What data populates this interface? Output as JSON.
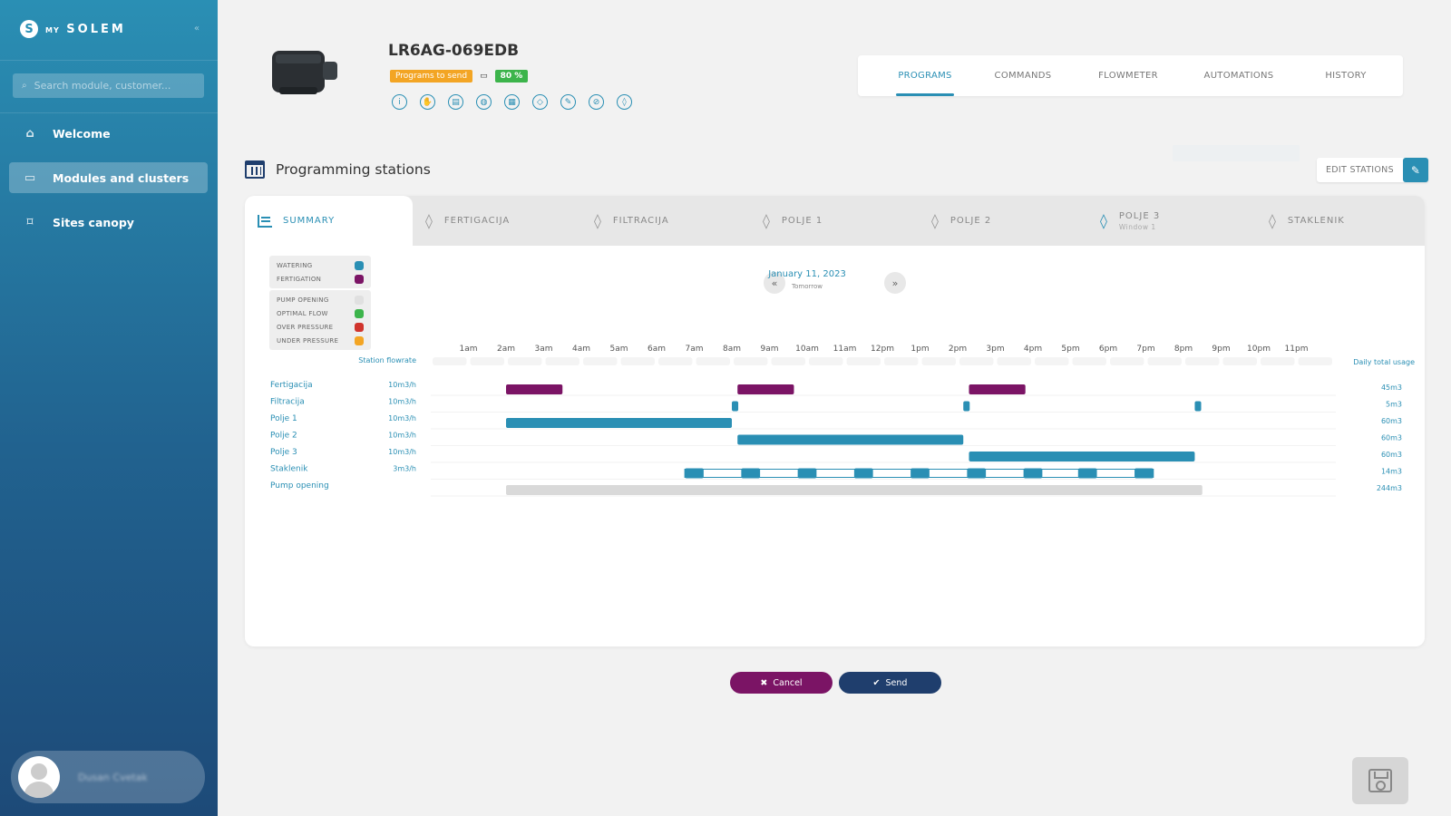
{
  "sidebar": {
    "logo_prefix": "MY",
    "logo_brand": "SOLEM",
    "collapse_icon": "«",
    "search_placeholder": "Search module, customer...",
    "items": [
      {
        "label": "Welcome",
        "icon": "home-icon",
        "active": false
      },
      {
        "label": "Modules and clusters",
        "icon": "modules-icon",
        "active": true
      },
      {
        "label": "Sites canopy",
        "icon": "map-icon",
        "active": false
      }
    ],
    "user_name": "Dusan Cvetak"
  },
  "device": {
    "title": "LR6AG-069EDB",
    "status_badge": "Programs to send",
    "battery": "80 %",
    "action_icons": [
      "info-icon",
      "hand-icon",
      "book-icon",
      "globe-icon",
      "calculator-icon",
      "tag-icon",
      "pencil-icon",
      "no-water-icon",
      "water-drop-icon"
    ]
  },
  "tabs": [
    {
      "label": "PROGRAMS",
      "active": true
    },
    {
      "label": "COMMANDS",
      "active": false
    },
    {
      "label": "FLOWMETER",
      "active": false
    },
    {
      "label": "AUTOMATIONS",
      "active": false
    },
    {
      "label": "HISTORY",
      "active": false
    }
  ],
  "section": {
    "title": "Programming stations",
    "edit_stations": "EDIT STATIONS"
  },
  "station_tabs": [
    {
      "label": "SUMMARY",
      "sub": "",
      "active": true
    },
    {
      "label": "FERTIGACIJA",
      "sub": ""
    },
    {
      "label": "FILTRACIJA",
      "sub": ""
    },
    {
      "label": "POLJE 1",
      "sub": ""
    },
    {
      "label": "POLJE 2",
      "sub": ""
    },
    {
      "label": "POLJE 3",
      "sub": "Window 1"
    },
    {
      "label": "STAKLENIK",
      "sub": ""
    }
  ],
  "legend": {
    "group1": [
      {
        "label": "WATERING",
        "color": "#2a8fb4"
      },
      {
        "label": "FERTIGATION",
        "color": "#7b1465"
      }
    ],
    "group2": [
      {
        "label": "PUMP OPENING",
        "color": "#e0e0e0"
      },
      {
        "label": "OPTIMAL FLOW",
        "color": "#3cb44b"
      },
      {
        "label": "OVER PRESSURE",
        "color": "#d0342c"
      },
      {
        "label": "UNDER PRESSURE",
        "color": "#f3a524"
      }
    ]
  },
  "date": {
    "label": "January 11, 2023",
    "sub": "Tomorrow",
    "prev": "«",
    "next": "»"
  },
  "chart_data": {
    "type": "gantt",
    "hours": [
      "1am",
      "2am",
      "3am",
      "4am",
      "5am",
      "6am",
      "7am",
      "8am",
      "9am",
      "10am",
      "11am",
      "12pm",
      "1pm",
      "2pm",
      "3pm",
      "4pm",
      "5pm",
      "6pm",
      "7pm",
      "8pm",
      "9pm",
      "10pm",
      "11pm"
    ],
    "flowrate_header": "Station flowrate",
    "usage_header": "Daily total usage",
    "rows": [
      {
        "name": "Fertigacija",
        "flowrate": "10m3/h",
        "usage": "45m3",
        "kind": "fertigation",
        "segments": [
          [
            2.0,
            3.5
          ],
          [
            8.15,
            9.65
          ],
          [
            14.3,
            15.8
          ]
        ]
      },
      {
        "name": "Filtracija",
        "flowrate": "10m3/h",
        "usage": "5m3",
        "kind": "watering",
        "segments": [
          [
            8.0,
            8.17
          ],
          [
            14.15,
            14.32
          ],
          [
            20.3,
            20.47
          ]
        ]
      },
      {
        "name": "Polje 1",
        "flowrate": "10m3/h",
        "usage": "60m3",
        "kind": "watering",
        "segments": [
          [
            2.0,
            8.0
          ]
        ]
      },
      {
        "name": "Polje 2",
        "flowrate": "10m3/h",
        "usage": "60m3",
        "kind": "watering",
        "segments": [
          [
            8.15,
            14.15
          ]
        ]
      },
      {
        "name": "Polje 3",
        "flowrate": "10m3/h",
        "usage": "60m3",
        "kind": "watering",
        "segments": [
          [
            14.3,
            20.3
          ]
        ]
      },
      {
        "name": "Staklenik",
        "flowrate": "3m3/h",
        "usage": "14m3",
        "kind": "pulsed",
        "segments": [
          [
            6.75,
            7.25
          ],
          [
            8.25,
            8.75
          ],
          [
            9.75,
            10.25
          ],
          [
            11.25,
            11.75
          ],
          [
            12.75,
            13.25
          ],
          [
            14.25,
            14.75
          ],
          [
            15.75,
            16.25
          ],
          [
            17.2,
            17.7
          ],
          [
            18.7,
            19.2
          ]
        ],
        "span": [
          6.75,
          19.2
        ]
      },
      {
        "name": "Pump opening",
        "flowrate": "",
        "usage": "244m3",
        "kind": "pump",
        "segments": [
          [
            2.0,
            20.5
          ]
        ]
      }
    ]
  },
  "buttons": {
    "cancel": "Cancel",
    "send": "Send",
    "cancel_icon": "✖",
    "send_icon": "✔"
  }
}
